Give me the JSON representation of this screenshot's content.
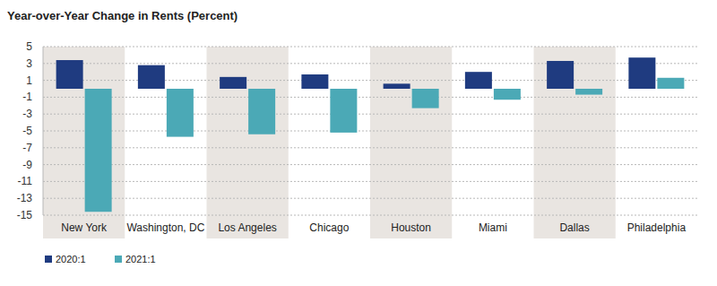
{
  "chart_data": {
    "type": "bar",
    "title": "Year-over-Year Change in Rents (Percent)",
    "categories": [
      "New York",
      "Washington, DC",
      "Los Angeles",
      "Chicago",
      "Houston",
      "Miami",
      "Dallas",
      "Philadelphia"
    ],
    "series": [
      {
        "name": "2020:1",
        "color": "#1f3b80",
        "values": [
          3.4,
          2.8,
          1.4,
          1.7,
          0.6,
          2.0,
          3.3,
          3.7
        ]
      },
      {
        "name": "2021:1",
        "color": "#4ba9b6",
        "values": [
          -14.6,
          -5.7,
          -5.4,
          -5.2,
          -2.3,
          -1.3,
          -0.7,
          1.3
        ]
      }
    ],
    "ylim": [
      -15,
      5
    ],
    "yticks": [
      -15,
      -13,
      -11,
      -9,
      -7,
      -5,
      -3,
      -1,
      1,
      3,
      5
    ],
    "grid": true,
    "legend": "bottom-left"
  }
}
